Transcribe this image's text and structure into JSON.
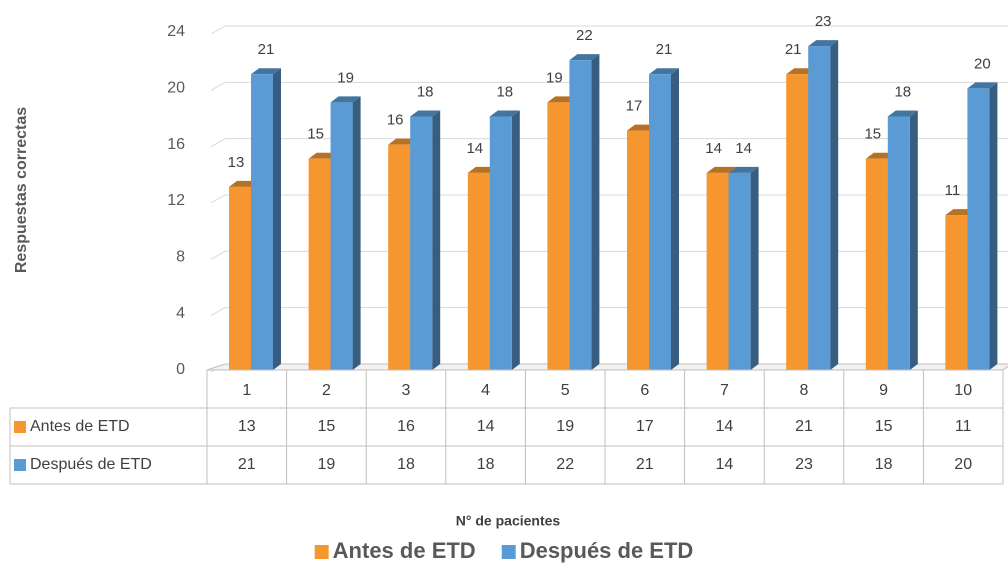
{
  "chart_data": {
    "type": "bar3d",
    "y_label": "Respuestas correctas",
    "x_label": "N° de pacientes",
    "categories": [
      "1",
      "2",
      "3",
      "4",
      "5",
      "6",
      "7",
      "8",
      "9",
      "10"
    ],
    "series": [
      {
        "name": "Antes de ETD",
        "color": "#f5962e",
        "values": [
          13,
          15,
          16,
          14,
          19,
          17,
          14,
          21,
          15,
          11
        ]
      },
      {
        "name": "Después de ETD",
        "color": "#5b9bd5",
        "values": [
          21,
          19,
          18,
          18,
          22,
          21,
          14,
          23,
          18,
          20
        ]
      }
    ],
    "ylim": [
      0,
      24
    ],
    "yticks": [
      0,
      4,
      8,
      12,
      16,
      20,
      24
    ],
    "grid": true,
    "legend": "bottom",
    "data_table": true
  }
}
